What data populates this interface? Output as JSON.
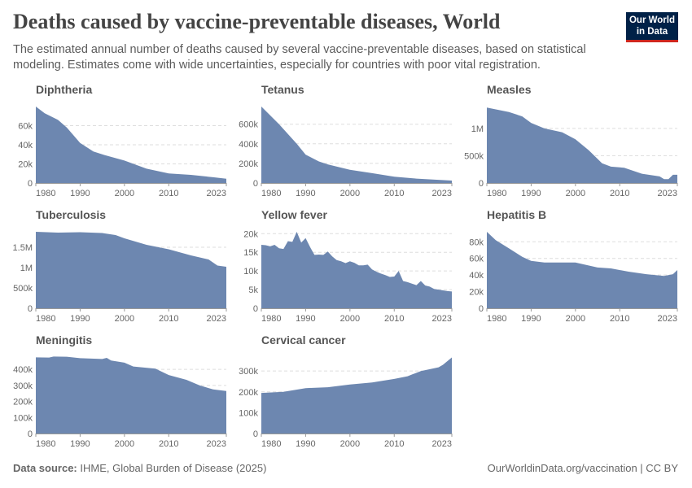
{
  "title": "Deaths caused by vaccine-preventable diseases, World",
  "subtitle": "The estimated annual number of deaths caused by several vaccine-preventable diseases, based on statistical modeling. Estimates come with wide uncertainties, especially for countries with poor vital registration.",
  "logo": {
    "line1": "Our World",
    "line2": "in Data",
    "bg": "#002147",
    "accent": "#ce261e"
  },
  "footer": {
    "source_label": "Data source:",
    "source": "IHME, Global Burden of Disease (2025)",
    "right": "OurWorldinData.org/vaccination | CC BY"
  },
  "colors": {
    "area": "#6d87b0"
  },
  "chart_data": [
    {
      "type": "area",
      "title": "Diphtheria",
      "xlim": [
        1980,
        2023
      ],
      "xticks": [
        "1980",
        "1990",
        "2000",
        "2010",
        "2023"
      ],
      "ylim": [
        0,
        80000
      ],
      "yticks": [
        [
          0,
          "0"
        ],
        [
          20000,
          "20k"
        ],
        [
          40000,
          "40k"
        ],
        [
          60000,
          "60k"
        ]
      ],
      "x": [
        1980,
        1982,
        1985,
        1987,
        1990,
        1993,
        1995,
        2000,
        2005,
        2010,
        2015,
        2020,
        2023
      ],
      "y": [
        80000,
        73000,
        66000,
        58000,
        42000,
        33000,
        30000,
        23500,
        15000,
        10000,
        8500,
        6000,
        4500
      ]
    },
    {
      "type": "area",
      "title": "Tetanus",
      "xlim": [
        1980,
        2023
      ],
      "xticks": [
        "1980",
        "1990",
        "2000",
        "2010",
        "2023"
      ],
      "ylim": [
        0,
        780000
      ],
      "yticks": [
        [
          0,
          "0"
        ],
        [
          200000,
          "200k"
        ],
        [
          400000,
          "400k"
        ],
        [
          600000,
          "600k"
        ]
      ],
      "x": [
        1980,
        1984,
        1988,
        1990,
        1993,
        1995,
        2000,
        2005,
        2010,
        2015,
        2020,
        2023
      ],
      "y": [
        780000,
        600000,
        400000,
        290000,
        220000,
        190000,
        135000,
        100000,
        65000,
        45000,
        32000,
        25000
      ]
    },
    {
      "type": "area",
      "title": "Measles",
      "xlim": [
        1980,
        2023
      ],
      "xticks": [
        "1980",
        "1990",
        "2000",
        "2010",
        "2023"
      ],
      "ylim": [
        0,
        1400000
      ],
      "yticks": [
        [
          0,
          "0"
        ],
        [
          500000,
          "500k"
        ],
        [
          1000000,
          "1M"
        ]
      ],
      "x": [
        1980,
        1985,
        1988,
        1990,
        1993,
        1997,
        2000,
        2003,
        2006,
        2008,
        2011,
        2015,
        2019,
        2020,
        2021,
        2022,
        2023
      ],
      "y": [
        1380000,
        1300000,
        1220000,
        1100000,
        1000000,
        930000,
        800000,
        600000,
        360000,
        300000,
        280000,
        170000,
        120000,
        70000,
        70000,
        150000,
        150000
      ]
    },
    {
      "type": "area",
      "title": "Tuberculosis",
      "xlim": [
        1980,
        2023
      ],
      "xticks": [
        "1980",
        "1990",
        "2000",
        "2010",
        "2023"
      ],
      "ylim": [
        0,
        1880000
      ],
      "yticks": [
        [
          0,
          "0"
        ],
        [
          500000,
          "500k"
        ],
        [
          1000000,
          "1M"
        ],
        [
          1500000,
          "1.5M"
        ]
      ],
      "x": [
        1980,
        1985,
        1990,
        1995,
        1998,
        2000,
        2005,
        2010,
        2015,
        2019,
        2021,
        2023
      ],
      "y": [
        1880000,
        1860000,
        1870000,
        1850000,
        1800000,
        1720000,
        1560000,
        1450000,
        1300000,
        1200000,
        1050000,
        1020000
      ]
    },
    {
      "type": "area",
      "title": "Yellow fever",
      "xlim": [
        1980,
        2023
      ],
      "xticks": [
        "1980",
        "1990",
        "2000",
        "2010",
        "2023"
      ],
      "ylim": [
        0,
        20500
      ],
      "yticks": [
        [
          0,
          "0"
        ],
        [
          5000,
          "5k"
        ],
        [
          10000,
          "10k"
        ],
        [
          15000,
          "15k"
        ],
        [
          20000,
          "20k"
        ]
      ],
      "x": [
        1980,
        1981,
        1982,
        1983,
        1984,
        1985,
        1986,
        1987,
        1988,
        1989,
        1990,
        1991,
        1992,
        1993,
        1994,
        1995,
        1996,
        1997,
        1998,
        1999,
        2000,
        2001,
        2002,
        2003,
        2004,
        2005,
        2006,
        2007,
        2008,
        2009,
        2010,
        2011,
        2012,
        2013,
        2014,
        2015,
        2016,
        2017,
        2018,
        2019,
        2020,
        2021,
        2022,
        2023
      ],
      "y": [
        17000,
        16900,
        16600,
        17000,
        16100,
        15900,
        18000,
        17800,
        20500,
        17600,
        18800,
        16400,
        14300,
        14400,
        14300,
        15200,
        13900,
        12900,
        12600,
        12100,
        12600,
        12200,
        11500,
        11500,
        11700,
        10400,
        9800,
        9300,
        8900,
        8400,
        8500,
        10000,
        7300,
        7000,
        6600,
        6200,
        7300,
        6100,
        5800,
        5200,
        5000,
        4800,
        4600,
        4500
      ]
    },
    {
      "type": "area",
      "title": "Hepatitis B",
      "xlim": [
        1980,
        2023
      ],
      "xticks": [
        "1980",
        "1990",
        "2000",
        "2010",
        "2023"
      ],
      "ylim": [
        0,
        92000
      ],
      "yticks": [
        [
          0,
          "0"
        ],
        [
          20000,
          "20k"
        ],
        [
          40000,
          "40k"
        ],
        [
          60000,
          "60k"
        ],
        [
          80000,
          "80k"
        ]
      ],
      "x": [
        1980,
        1982,
        1985,
        1988,
        1990,
        1993,
        2000,
        2005,
        2008,
        2012,
        2016,
        2020,
        2022,
        2023
      ],
      "y": [
        92000,
        82000,
        72000,
        62000,
        57000,
        55000,
        55000,
        49000,
        48000,
        44000,
        41000,
        39000,
        41000,
        46000
      ]
    },
    {
      "type": "area",
      "title": "Meningitis",
      "xlim": [
        1980,
        2023
      ],
      "xticks": [
        "1980",
        "1990",
        "2000",
        "2010",
        "2023"
      ],
      "ylim": [
        0,
        477000
      ],
      "yticks": [
        [
          0,
          "0"
        ],
        [
          100000,
          "100k"
        ],
        [
          200000,
          "200k"
        ],
        [
          300000,
          "300k"
        ],
        [
          400000,
          "400k"
        ]
      ],
      "x": [
        1980,
        1983,
        1984,
        1987,
        1990,
        1995,
        1996,
        1997,
        2000,
        2002,
        2007,
        2010,
        2014,
        2017,
        2020,
        2023
      ],
      "y": [
        475000,
        474000,
        480000,
        479000,
        470000,
        465000,
        472000,
        455000,
        442000,
        418000,
        405000,
        365000,
        335000,
        300000,
        275000,
        265000
      ]
    },
    {
      "type": "area",
      "title": "Cervical cancer",
      "xlim": [
        1980,
        2023
      ],
      "xticks": [
        "1980",
        "1990",
        "2000",
        "2010",
        "2023"
      ],
      "ylim": [
        0,
        367000
      ],
      "yticks": [
        [
          0,
          "0"
        ],
        [
          100000,
          "100k"
        ],
        [
          200000,
          "200k"
        ],
        [
          300000,
          "300k"
        ]
      ],
      "x": [
        1980,
        1985,
        1990,
        1995,
        2000,
        2005,
        2010,
        2013,
        2016,
        2020,
        2021,
        2023
      ],
      "y": [
        195000,
        200000,
        218000,
        222000,
        235000,
        245000,
        262000,
        275000,
        300000,
        318000,
        330000,
        365000
      ]
    }
  ]
}
